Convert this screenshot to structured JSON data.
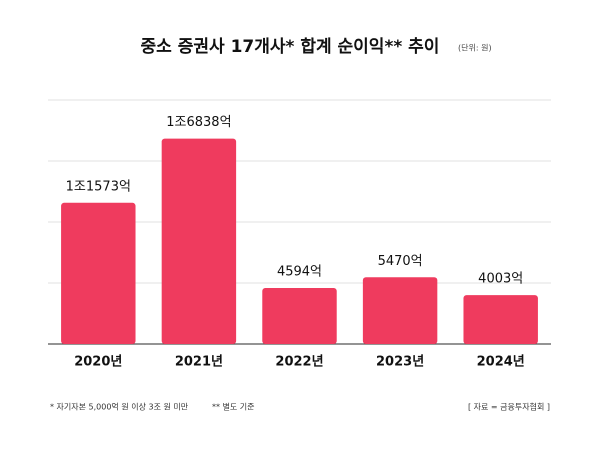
{
  "chart_data": {
    "type": "bar",
    "title": "중소 증권사 17개사* 합계 순이익** 추이",
    "subtitle": "(단위: 원)",
    "categories": [
      "2020년",
      "2021년",
      "2022년",
      "2023년",
      "2024년"
    ],
    "values": [
      11573,
      16838,
      4594,
      5470,
      4003
    ],
    "value_labels": [
      "1조1573억",
      "1조6838억",
      "4594억",
      "5470억",
      "4003억"
    ],
    "color": "#ef3b5e",
    "ylim": [
      0,
      20000
    ],
    "yticks": [
      0,
      5000,
      10000,
      15000,
      20000
    ],
    "grid": true,
    "notes": [
      "* 자기자본 5,000억 원 이상 3조 원 미만",
      "** 별도 기준"
    ],
    "source": "[ 자료 = 금융투자협회 ]"
  }
}
